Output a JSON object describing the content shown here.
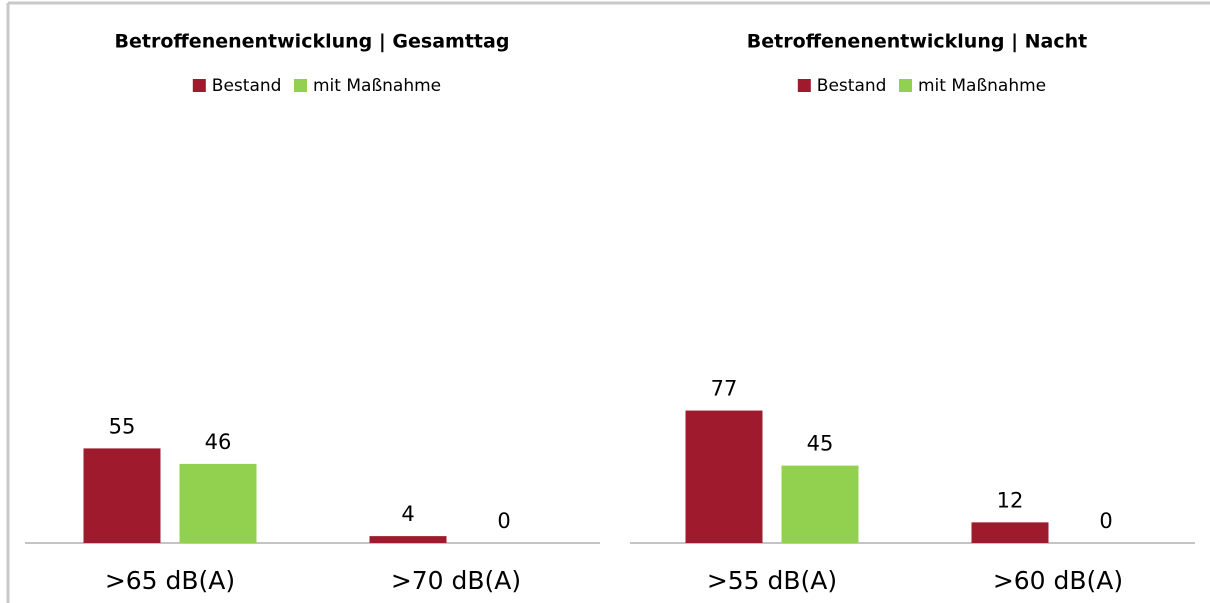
{
  "chart_data": [
    {
      "type": "bar",
      "title": "Betroffenenentwicklung | Gesamttag",
      "categories": [
        ">65 dB(A)",
        ">70 dB(A)"
      ],
      "series": [
        {
          "name": "Bestand",
          "color": "#9e1a2c",
          "values": [
            55,
            4
          ]
        },
        {
          "name": "mit Maßnahme",
          "color": "#92d050",
          "values": [
            46,
            0
          ]
        }
      ]
    },
    {
      "type": "bar",
      "title": "Betroffenenentwicklung | Nacht",
      "categories": [
        ">55 dB(A)",
        ">60 dB(A)"
      ],
      "series": [
        {
          "name": "Bestand",
          "color": "#9e1a2c",
          "values": [
            77,
            12
          ]
        },
        {
          "name": "mit Maßnahme",
          "color": "#92d050",
          "values": [
            45,
            0
          ]
        }
      ]
    }
  ]
}
